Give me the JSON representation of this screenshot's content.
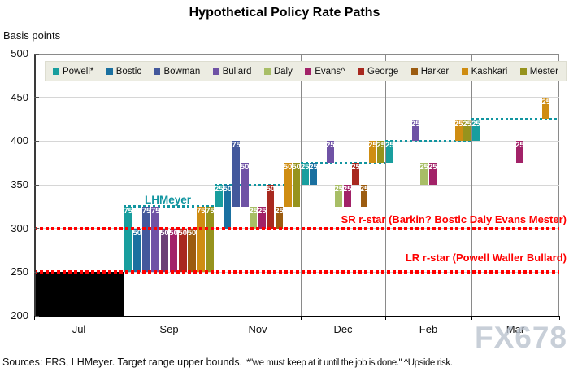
{
  "chart_data": {
    "type": "bar",
    "title": "Hypothetical Policy Rate Paths",
    "ylabel": "Basis points",
    "ylim": [
      200,
      500
    ],
    "yticks": [
      "500",
      "450",
      "400",
      "350",
      "300",
      "250",
      "200"
    ],
    "x_categories": [
      "Jul",
      "Sep",
      "Nov",
      "Dec",
      "Feb",
      "Mar"
    ],
    "grid": "horizontal-and-meeting-separators",
    "legend": {
      "position": "top",
      "entries": [
        {
          "name": "Powell*",
          "color": "#189e9e"
        },
        {
          "name": "Bostic",
          "color": "#1a70a0"
        },
        {
          "name": "Bowman",
          "color": "#43589c"
        },
        {
          "name": "Bullard",
          "color": "#6f52a5"
        },
        {
          "name": "Daly",
          "color": "#a8be66"
        },
        {
          "name": "Evans^",
          "color": "#a22268"
        },
        {
          "name": "George",
          "color": "#a8291f"
        },
        {
          "name": "Harker",
          "color": "#9c5c10"
        },
        {
          "name": "Kashkari",
          "color": "#cf8d12"
        },
        {
          "name": "Mester",
          "color": "#96931d"
        }
      ]
    },
    "jul_block": {
      "meeting": "Jul",
      "from": 200,
      "to": 250,
      "color": "#000000"
    },
    "bars": [
      {
        "m": "Sep",
        "p": "Powell*",
        "from": 250,
        "to": 325,
        "label": "75"
      },
      {
        "m": "Sep",
        "p": "Bostic",
        "from": 250,
        "to": 300,
        "label": "50"
      },
      {
        "m": "Sep",
        "p": "Bowman",
        "from": 250,
        "to": 325,
        "label": "75"
      },
      {
        "m": "Sep",
        "p": "Bullard",
        "from": 250,
        "to": 325,
        "label": "75"
      },
      {
        "m": "Sep",
        "p": "Daly",
        "from": 250,
        "to": 300,
        "label": "50",
        "color": "#6b4077"
      },
      {
        "m": "Sep",
        "p": "Evans^",
        "from": 250,
        "to": 300,
        "label": "50"
      },
      {
        "m": "Sep",
        "p": "George",
        "from": 250,
        "to": 300,
        "label": "50"
      },
      {
        "m": "Sep",
        "p": "Harker",
        "from": 250,
        "to": 300,
        "label": "50"
      },
      {
        "m": "Sep",
        "p": "Kashkari",
        "from": 250,
        "to": 325,
        "label": "75"
      },
      {
        "m": "Sep",
        "p": "Mester",
        "from": 250,
        "to": 325,
        "label": "75"
      },
      {
        "m": "Nov",
        "p": "Powell*",
        "from": 325,
        "to": 350,
        "label": "25"
      },
      {
        "m": "Nov",
        "p": "Bostic",
        "from": 300,
        "to": 350,
        "label": "50"
      },
      {
        "m": "Nov",
        "p": "Bowman",
        "from": 325,
        "to": 400,
        "label": "75"
      },
      {
        "m": "Nov",
        "p": "Bullard",
        "from": 325,
        "to": 375,
        "label": "50"
      },
      {
        "m": "Nov",
        "p": "Daly",
        "from": 300,
        "to": 325,
        "label": "25"
      },
      {
        "m": "Nov",
        "p": "Evans^",
        "from": 300,
        "to": 325,
        "label": "25"
      },
      {
        "m": "Nov",
        "p": "George",
        "from": 300,
        "to": 350,
        "label": "50"
      },
      {
        "m": "Nov",
        "p": "Harker",
        "from": 300,
        "to": 325,
        "label": "25"
      },
      {
        "m": "Nov",
        "p": "Kashkari",
        "from": 325,
        "to": 375,
        "label": "50"
      },
      {
        "m": "Nov",
        "p": "Mester",
        "from": 325,
        "to": 375,
        "label": "50"
      },
      {
        "m": "Dec",
        "p": "Powell*",
        "from": 350,
        "to": 375,
        "label": "25"
      },
      {
        "m": "Dec",
        "p": "Bostic",
        "from": 350,
        "to": 375,
        "label": "25"
      },
      {
        "m": "Dec",
        "p": "Bullard",
        "from": 375,
        "to": 400,
        "label": "25"
      },
      {
        "m": "Dec",
        "p": "Daly",
        "from": 325,
        "to": 350,
        "label": "25"
      },
      {
        "m": "Dec",
        "p": "Evans^",
        "from": 325,
        "to": 350,
        "label": "25"
      },
      {
        "m": "Dec",
        "p": "George",
        "from": 350,
        "to": 375,
        "label": "25"
      },
      {
        "m": "Dec",
        "p": "Harker",
        "from": 325,
        "to": 350,
        "label": "25"
      },
      {
        "m": "Dec",
        "p": "Kashkari",
        "from": 375,
        "to": 400,
        "label": "25"
      },
      {
        "m": "Dec",
        "p": "Mester",
        "from": 375,
        "to": 400,
        "label": "25"
      },
      {
        "m": "Feb",
        "p": "Powell*",
        "from": 375,
        "to": 400,
        "label": "25"
      },
      {
        "m": "Feb",
        "p": "Bullard",
        "from": 400,
        "to": 425,
        "label": "25"
      },
      {
        "m": "Feb",
        "p": "Daly",
        "from": 350,
        "to": 375,
        "label": "25"
      },
      {
        "m": "Feb",
        "p": "Evans^",
        "from": 350,
        "to": 375,
        "label": "25"
      },
      {
        "m": "Feb",
        "p": "Kashkari",
        "from": 400,
        "to": 425,
        "label": "25"
      },
      {
        "m": "Feb",
        "p": "Mester",
        "from": 400,
        "to": 425,
        "label": "25"
      },
      {
        "m": "Mar",
        "p": "Powell*",
        "from": 400,
        "to": 425,
        "label": "25"
      },
      {
        "m": "Mar",
        "p": "Evans^",
        "from": 375,
        "to": 400,
        "label": "25"
      },
      {
        "m": "Mar",
        "p": "Kashkari",
        "from": 425,
        "to": 450,
        "label": "25"
      }
    ],
    "lhmeyer": {
      "label": "LHMeyer",
      "color": "#1195a0",
      "steps": [
        [
          "Sep",
          325
        ],
        [
          "Nov",
          350
        ],
        [
          "Dec",
          375
        ],
        [
          "Feb",
          400
        ],
        [
          "Mar",
          425
        ]
      ]
    },
    "reference_lines": [
      {
        "bp": 300,
        "label": "SR r-star (Barkin? Bostic Daly Evans Mester)",
        "color": "#ff0000"
      },
      {
        "bp": 250,
        "label": "LR r-star (Powell Waller Bullard)",
        "color": "#ff0000"
      }
    ],
    "watermark": "FX678",
    "source_note": "Sources: FRS, LHMeyer. Target range upper bounds.",
    "footnote": "*\"we must keep at it until the job is done.\" ^Upside risk."
  }
}
